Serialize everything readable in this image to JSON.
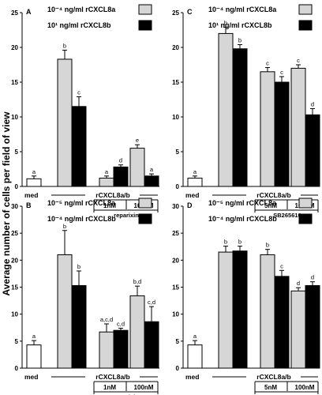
{
  "y_axis_label": "Average number of cells per field of view",
  "colors": {
    "med": "#ffffff",
    "series1": "#d6d6d6",
    "series2": "#000000"
  },
  "chart_data": [
    {
      "type": "bar",
      "panel": "A",
      "legend": [
        "10⁻⁴ ng/ml rCXCL8a",
        "10¹ ng/ml rCXCL8b"
      ],
      "ylim": [
        0,
        25
      ],
      "yticks": [
        0,
        5,
        10,
        15,
        20,
        25
      ],
      "group_label": "rCXCL8a/b",
      "sub_labels": [
        "1nM",
        "100nM"
      ],
      "inhibitor_label": "reparixin",
      "med": {
        "label": "med",
        "value": 1.1,
        "err": 0.4,
        "sig": "a"
      },
      "groups": [
        {
          "values": [
            18.3,
            11.5
          ],
          "errs": [
            1.3,
            1.4
          ],
          "sig": [
            "b",
            "c"
          ]
        },
        {
          "values": [
            1.2,
            2.8
          ],
          "errs": [
            0.3,
            0.3
          ],
          "sig": [
            "a",
            "d"
          ]
        },
        {
          "values": [
            5.5,
            1.5
          ],
          "errs": [
            0.5,
            0.3
          ],
          "sig": [
            "e",
            "a"
          ]
        }
      ]
    },
    {
      "type": "bar",
      "panel": "C",
      "legend": [
        "10⁻⁴ ng/ml rCXCL8a",
        "10¹ ng/ml rCXCL8b"
      ],
      "ylim": [
        0,
        25
      ],
      "yticks": [
        0,
        5,
        10,
        15,
        20,
        25
      ],
      "group_label": "rCXCL8a/b",
      "sub_labels": [
        "5nM",
        "100nM"
      ],
      "inhibitor_label": "SB265610",
      "med": {
        "label": "med",
        "value": 1.2,
        "err": 0.3,
        "sig": "a"
      },
      "groups": [
        {
          "values": [
            22.0,
            19.8
          ],
          "errs": [
            0.9,
            0.6
          ],
          "sig": [
            "b",
            "b"
          ]
        },
        {
          "values": [
            16.5,
            15.0
          ],
          "errs": [
            0.6,
            0.8
          ],
          "sig": [
            "c",
            "c"
          ]
        },
        {
          "values": [
            17.0,
            10.3
          ],
          "errs": [
            0.5,
            0.9
          ],
          "sig": [
            "c",
            "d"
          ]
        }
      ]
    },
    {
      "type": "bar",
      "panel": "B",
      "legend": [
        "10⁻⁵ ng/ml rCXCL8a",
        "10⁻⁴ ng/ml rCXCL8b"
      ],
      "ylim": [
        0,
        30
      ],
      "yticks": [
        0,
        5,
        10,
        15,
        20,
        25,
        30
      ],
      "group_label": "rCXCL8a/b",
      "sub_labels": [
        "1nM",
        "100nM"
      ],
      "inhibitor_label": "reparixin",
      "med": {
        "label": "med",
        "value": 4.3,
        "err": 0.8,
        "sig": "a"
      },
      "groups": [
        {
          "values": [
            21.0,
            15.3
          ],
          "errs": [
            4.5,
            2.7
          ],
          "sig": [
            "b",
            "b"
          ]
        },
        {
          "values": [
            6.7,
            7.0
          ],
          "errs": [
            1.5,
            0.4
          ],
          "sig": [
            "a,c,d",
            "c,d"
          ]
        },
        {
          "values": [
            13.4,
            8.6
          ],
          "errs": [
            1.8,
            2.8
          ],
          "sig": [
            "b,d",
            "c,d"
          ]
        }
      ]
    },
    {
      "type": "bar",
      "panel": "D",
      "legend": [
        "10⁻⁵ ng/ml rCXCL8a",
        "10⁻⁴ ng/ml rCXCL8b"
      ],
      "ylim": [
        0,
        30
      ],
      "yticks": [
        0,
        5,
        10,
        15,
        20,
        25,
        30
      ],
      "group_label": "rCXCL8a/b",
      "sub_labels": [
        "5nM",
        "100nM"
      ],
      "inhibitor_label": "SB265610",
      "med": {
        "label": "med",
        "value": 4.3,
        "err": 0.8,
        "sig": "a"
      },
      "groups": [
        {
          "values": [
            21.5,
            21.7
          ],
          "errs": [
            1.1,
            0.9
          ],
          "sig": [
            "b",
            "b"
          ]
        },
        {
          "values": [
            21.0,
            17.0
          ],
          "errs": [
            1.0,
            1.1
          ],
          "sig": [
            "b",
            "c"
          ]
        },
        {
          "values": [
            14.3,
            15.3
          ],
          "errs": [
            0.6,
            0.7
          ],
          "sig": [
            "d",
            "d"
          ]
        }
      ]
    }
  ]
}
